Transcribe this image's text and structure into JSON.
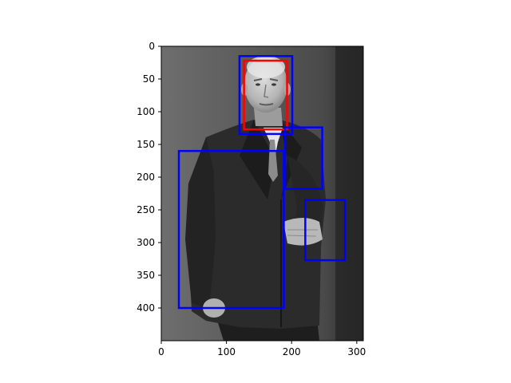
{
  "image_panel": {
    "x_axis": {
      "min": 0,
      "max": 310,
      "ticks": [
        0,
        100,
        200,
        300
      ]
    },
    "y_axis": {
      "min": 0,
      "max": 450,
      "inverted": true,
      "ticks": [
        0,
        50,
        100,
        150,
        200,
        250,
        300,
        350,
        400
      ]
    },
    "boxes": [
      {
        "name": "face-box-red",
        "color": "#ff0000",
        "x0": 127,
        "y0": 22,
        "x1": 193,
        "y1": 127
      },
      {
        "name": "face-box-blue",
        "color": "#0000ff",
        "x0": 120,
        "y0": 15,
        "x1": 201,
        "y1": 134
      },
      {
        "name": "chest-box-blue",
        "color": "#0000ff",
        "x0": 190,
        "y0": 124,
        "x1": 247,
        "y1": 218
      },
      {
        "name": "torso-box-blue",
        "color": "#0000ff",
        "x0": 27,
        "y0": 160,
        "x1": 188,
        "y1": 400
      },
      {
        "name": "hand-box-blue",
        "color": "#0000ff",
        "x0": 221,
        "y0": 235,
        "x1": 282,
        "y1": 327
      }
    ]
  }
}
